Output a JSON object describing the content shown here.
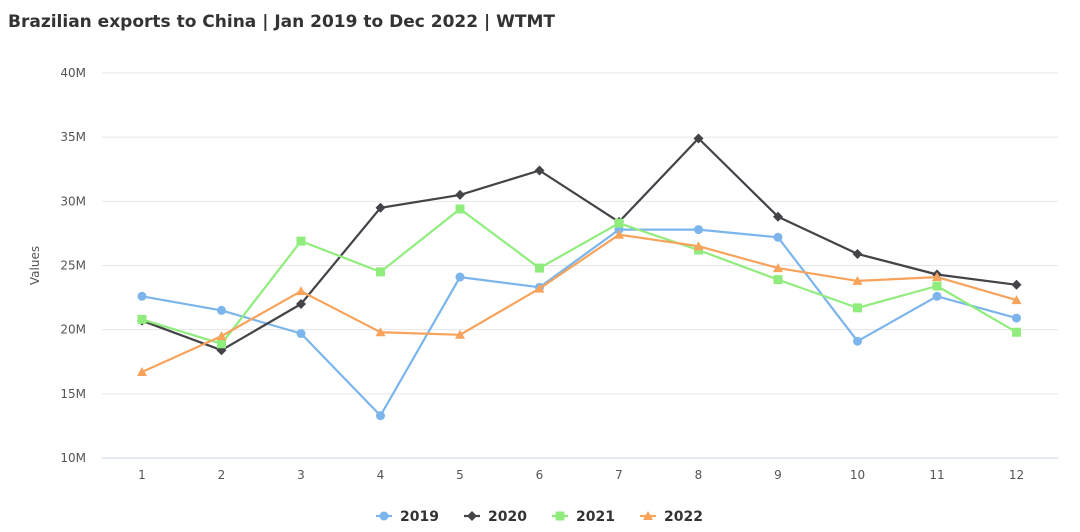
{
  "chart_data": {
    "type": "line",
    "title": "Brazilian exports to China | Jan 2019 to Dec 2022 | WTMT",
    "xlabel": "",
    "ylabel": "Values",
    "x": [
      1,
      2,
      3,
      4,
      5,
      6,
      7,
      8,
      9,
      10,
      11,
      12
    ],
    "x_tick_labels": [
      "1",
      "2",
      "3",
      "4",
      "5",
      "6",
      "7",
      "8",
      "9",
      "10",
      "11",
      "12"
    ],
    "ylim": [
      10000000,
      40000000
    ],
    "y_ticks": [
      10000000,
      15000000,
      20000000,
      25000000,
      30000000,
      35000000,
      40000000
    ],
    "y_tick_labels": [
      "10M",
      "15M",
      "20M",
      "25M",
      "30M",
      "35M",
      "40M"
    ],
    "grid": true,
    "legend_position": "bottom",
    "series": [
      {
        "name": "2019",
        "color": "#7cb5ec",
        "marker": "circle",
        "values": [
          22600000,
          21500000,
          19700000,
          13300000,
          24100000,
          23300000,
          27800000,
          27800000,
          27200000,
          19100000,
          22600000,
          20900000
        ]
      },
      {
        "name": "2020",
        "color": "#434348",
        "marker": "diamond",
        "values": [
          20700000,
          18400000,
          22000000,
          29500000,
          30500000,
          32400000,
          28400000,
          34900000,
          28800000,
          25900000,
          24300000,
          23500000
        ]
      },
      {
        "name": "2021",
        "color": "#90ed7d",
        "marker": "square",
        "values": [
          20800000,
          18900000,
          26900000,
          24500000,
          29400000,
          24800000,
          28300000,
          26200000,
          23900000,
          21700000,
          23400000,
          19800000
        ]
      },
      {
        "name": "2022",
        "color": "#f7a35c",
        "marker": "triangle",
        "values": [
          16700000,
          19500000,
          23000000,
          19800000,
          19600000,
          23200000,
          27400000,
          26500000,
          24800000,
          23800000,
          24100000,
          22300000
        ]
      }
    ]
  }
}
